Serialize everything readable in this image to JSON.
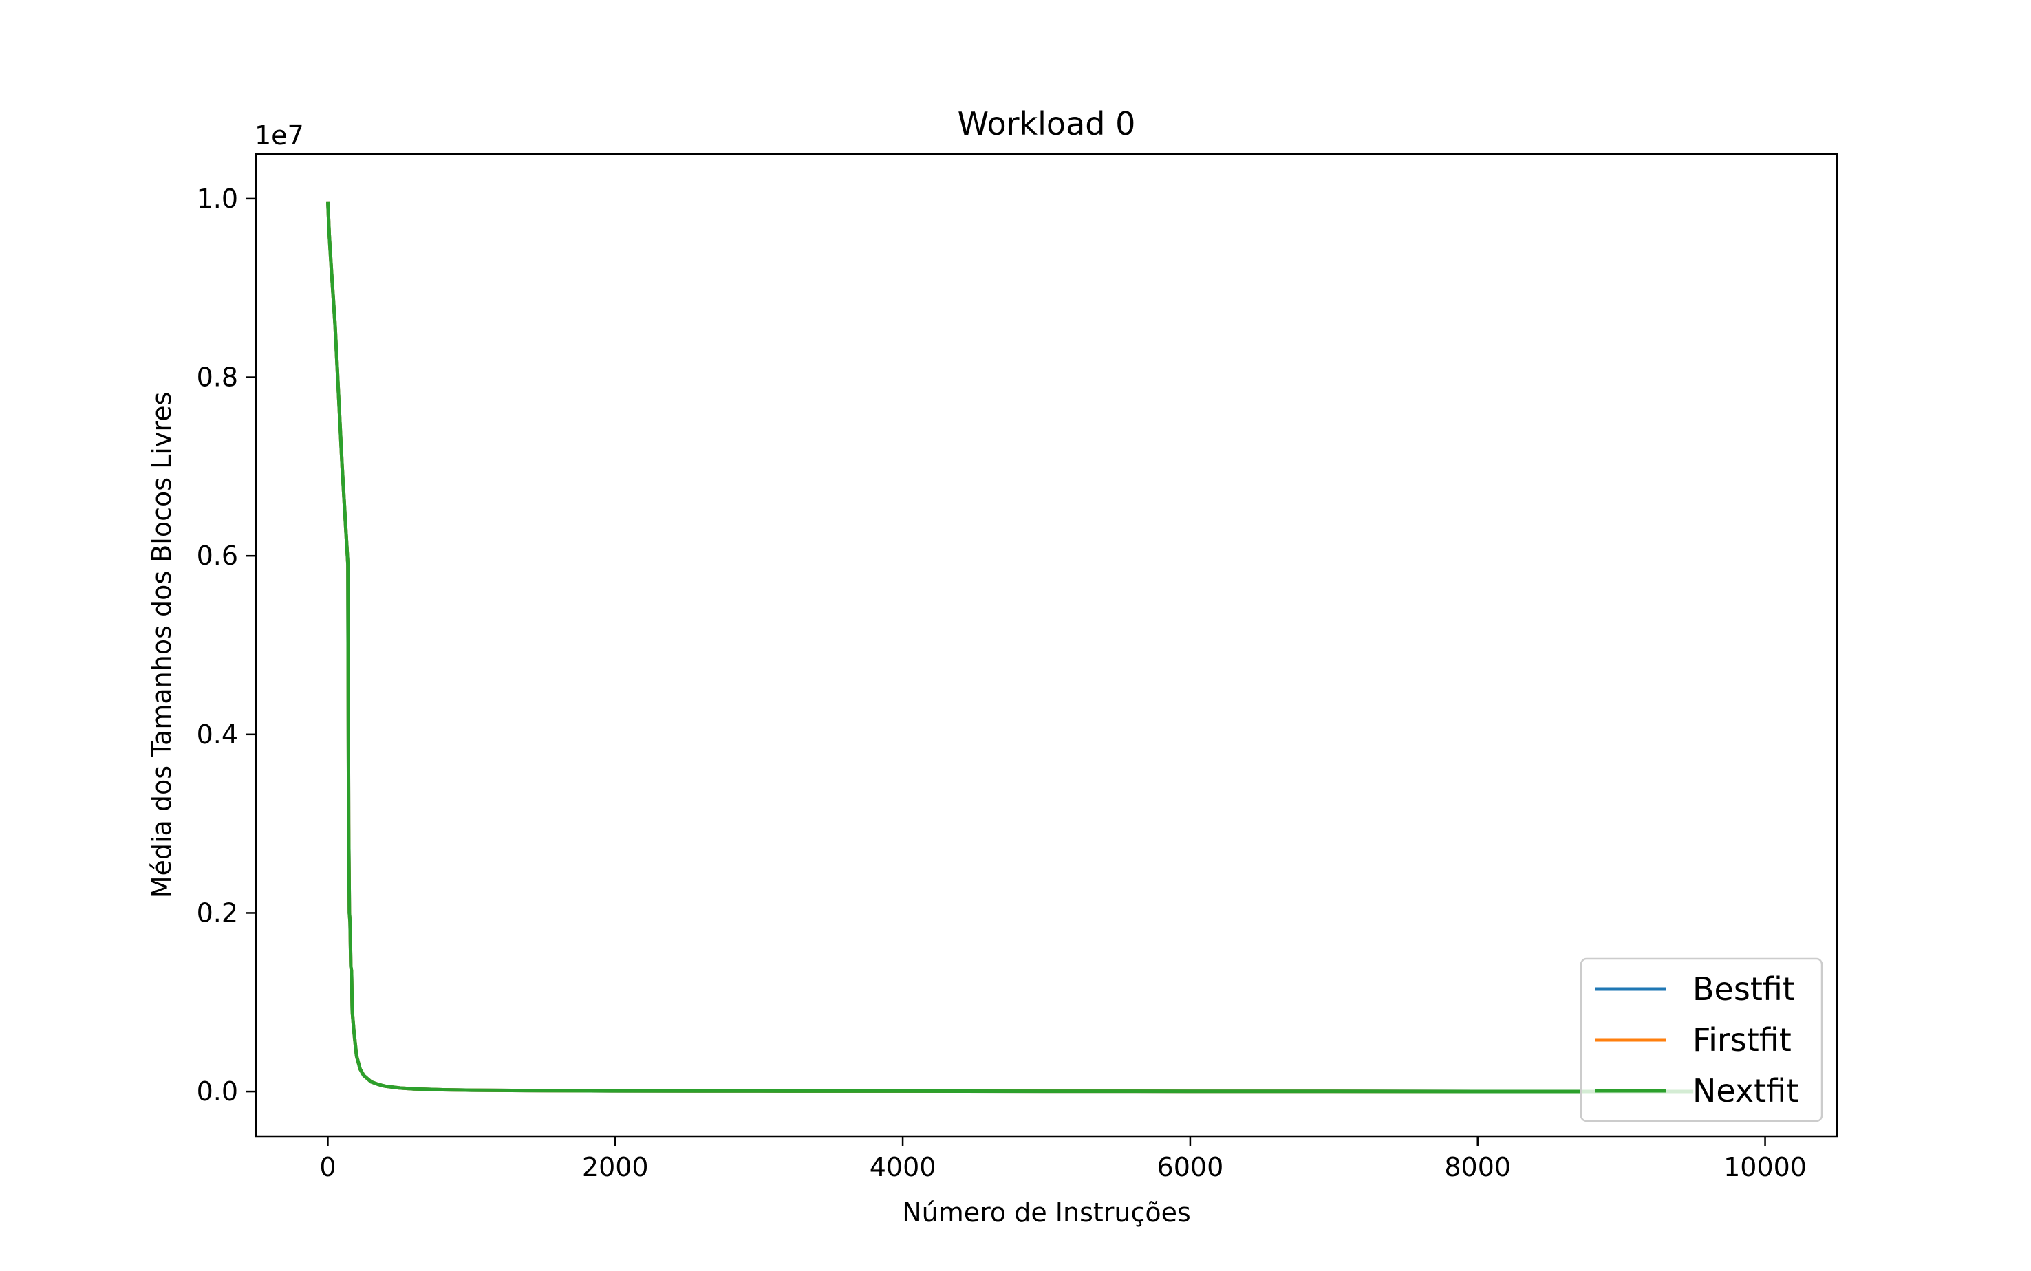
{
  "chart_data": {
    "type": "line",
    "title": "Workload 0",
    "xlabel": "Número de Instruções",
    "ylabel": "Média dos Tamanhos dos Blocos Livres",
    "y_scale_label": "1e7",
    "xlim": [
      -500,
      10500
    ],
    "ylim": [
      -0.05,
      1.05
    ],
    "xticks": [
      0,
      2000,
      4000,
      6000,
      8000,
      10000
    ],
    "xtick_labels": [
      "0",
      "2000",
      "4000",
      "6000",
      "8000",
      "10000"
    ],
    "yticks": [
      0.0,
      0.2,
      0.4,
      0.6,
      0.8,
      1.0
    ],
    "ytick_labels": [
      "0.0",
      "0.2",
      "0.4",
      "0.6",
      "0.8",
      "1.0"
    ],
    "grid": false,
    "legend_position": "lower-right",
    "x": [
      0,
      10,
      25,
      50,
      75,
      100,
      125,
      140,
      145,
      150,
      155,
      160,
      165,
      170,
      180,
      190,
      200,
      225,
      250,
      300,
      350,
      400,
      500,
      600,
      800,
      1000,
      1500,
      2000,
      3000,
      4000,
      5000,
      6000,
      7000,
      8000,
      9000,
      9500
    ],
    "series": [
      {
        "name": "Bestfit",
        "color": "#1f77b4",
        "values": [
          0.997,
          0.96,
          0.92,
          0.86,
          0.78,
          0.7,
          0.63,
          0.59,
          0.3,
          0.2,
          0.19,
          0.14,
          0.135,
          0.09,
          0.07,
          0.055,
          0.04,
          0.025,
          0.018,
          0.011,
          0.008,
          0.006,
          0.004,
          0.003,
          0.002,
          0.0015,
          0.001,
          0.0008,
          0.0006,
          0.0005,
          0.0004,
          0.0003,
          0.0002,
          0.0001,
          8e-05,
          5e-05
        ]
      },
      {
        "name": "Firstfit",
        "color": "#ff7f0e",
        "values": [
          0.997,
          0.96,
          0.92,
          0.86,
          0.78,
          0.7,
          0.63,
          0.59,
          0.3,
          0.2,
          0.19,
          0.14,
          0.135,
          0.09,
          0.07,
          0.055,
          0.04,
          0.025,
          0.018,
          0.011,
          0.008,
          0.006,
          0.004,
          0.003,
          0.002,
          0.0015,
          0.001,
          0.0008,
          0.0006,
          0.0005,
          0.0004,
          0.0003,
          0.0002,
          0.0001,
          8e-05,
          5e-05
        ]
      },
      {
        "name": "Nextfit",
        "color": "#2ca02c",
        "values": [
          0.997,
          0.96,
          0.92,
          0.86,
          0.78,
          0.7,
          0.63,
          0.59,
          0.3,
          0.2,
          0.19,
          0.14,
          0.135,
          0.09,
          0.07,
          0.055,
          0.04,
          0.025,
          0.018,
          0.011,
          0.008,
          0.006,
          0.004,
          0.003,
          0.002,
          0.0015,
          0.001,
          0.0008,
          0.0006,
          0.0005,
          0.0004,
          0.0003,
          0.0002,
          0.0001,
          8e-05,
          5e-05
        ]
      }
    ]
  }
}
